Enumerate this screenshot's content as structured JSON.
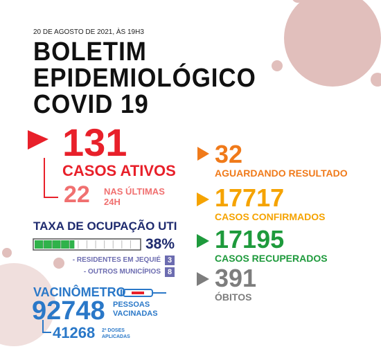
{
  "header": {
    "date": "20 DE AGOSTO DE 2021, ÀS 19H3",
    "title_lines": [
      "BOLETIM",
      "EPIDEMIOLÓGICO",
      "COVID 19"
    ]
  },
  "active": {
    "value": 131,
    "label": "CASOS ATIVOS",
    "last24": 22,
    "last24_label": [
      "NAS ÚLTIMAS",
      "24H"
    ]
  },
  "stats": [
    {
      "value": 32,
      "label": "AGUARDANDO RESULTADO",
      "color": "#f07a1a"
    },
    {
      "value": 17717,
      "label": "CASOS CONFIRMADOS",
      "color": "#f5a300"
    },
    {
      "value": 17195,
      "label": "CASOS RECUPERADOS",
      "color": "#1e9a3c"
    },
    {
      "value": 391,
      "label": "ÓBITOS",
      "color": "#7d7d7d"
    }
  ],
  "uti": {
    "title": "TAXA DE OCUPAÇÃO UTI",
    "occupancy": {
      "value": 38,
      "label": "38%"
    },
    "rows": [
      {
        "label": "- RESIDENTES EM JEQUIÉ",
        "value": 3
      },
      {
        "label": "- OUTROS MUNICÍPIOS",
        "value": 8
      }
    ]
  },
  "vaccine": {
    "title": "VACINÔMETRO",
    "vaccinated": 92748,
    "vaccinated_label": [
      "PESSOAS",
      "VACINADAS"
    ],
    "second_doses": 41268,
    "second_doses_label": [
      "2ª DOSES",
      "APLICADAS"
    ]
  }
}
